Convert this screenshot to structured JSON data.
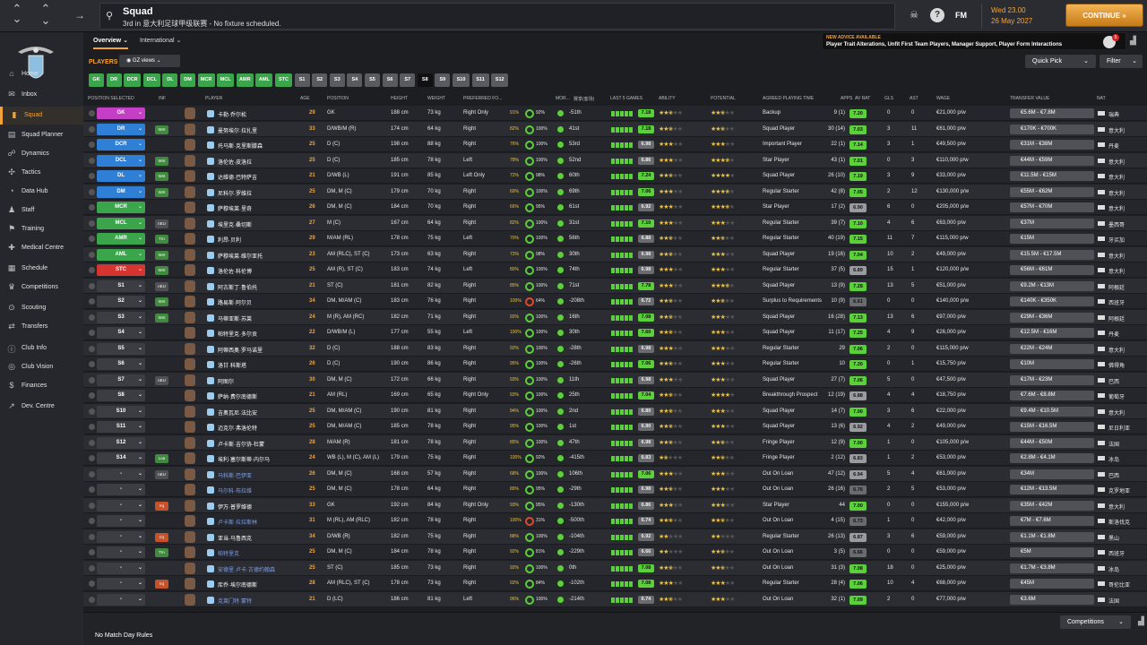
{
  "topbar": {
    "title": "Squad",
    "subtitle": "3rd in 意大利足球甲级联赛 - No fixture scheduled.",
    "fm": "FM",
    "day_time": "Wed 23.00",
    "date": "26 May 2027",
    "continue_label": "CONTINUE",
    "nav_back": "←",
    "nav_fwd": "→",
    "nav_up": "⌃",
    "nav_down": "⌄"
  },
  "sidebar": {
    "items": [
      {
        "label": "Home",
        "icon": "home-icon"
      },
      {
        "label": "Inbox",
        "icon": "inbox-icon"
      },
      {
        "label": "Squad",
        "icon": "shirt-icon"
      },
      {
        "label": "Squad Planner",
        "icon": "planner-icon"
      },
      {
        "label": "Dynamics",
        "icon": "dynamics-icon"
      },
      {
        "label": "Tactics",
        "icon": "tactics-icon"
      },
      {
        "label": "Data Hub",
        "icon": "datahub-icon"
      },
      {
        "label": "Staff",
        "icon": "staff-icon"
      },
      {
        "label": "Training",
        "icon": "training-icon"
      },
      {
        "label": "Medical Centre",
        "icon": "medical-icon"
      },
      {
        "label": "Schedule",
        "icon": "schedule-icon"
      },
      {
        "label": "Competitions",
        "icon": "trophy-icon"
      },
      {
        "label": "Scouting",
        "icon": "scouting-icon"
      },
      {
        "label": "Transfers",
        "icon": "transfers-icon"
      },
      {
        "label": "Club Info",
        "icon": "info-icon"
      },
      {
        "label": "Club Vision",
        "icon": "vision-icon"
      },
      {
        "label": "Finances",
        "icon": "finances-icon"
      },
      {
        "label": "Dev. Centre",
        "icon": "devcentre-icon"
      }
    ]
  },
  "tabs": [
    {
      "label": "Overview"
    },
    {
      "label": "International"
    }
  ],
  "advice": {
    "title": "NEW ADVICE AVAILABLE",
    "text": "Player Trait Alterations, Unfit First Team Players, Manager Support, Player Form Interactions",
    "badge": "5"
  },
  "toolbar": {
    "players_label": "PLAYERS",
    "views_label": "GZ views",
    "quick_pick": "Quick Pick",
    "filter": "Filter"
  },
  "positions": [
    "GK",
    "DR",
    "DCR",
    "DCL",
    "DL",
    "DM",
    "MCR",
    "MCL",
    "AMR",
    "AML",
    "STC",
    "S1",
    "S2",
    "S3",
    "S4",
    "S5",
    "S6",
    "S7",
    "S8",
    "S9",
    "S10",
    "S11",
    "S12"
  ],
  "columns": [
    "POSITION SELECTED",
    "INF",
    "PLAYER",
    "AGE",
    "POSITION",
    "HEIGHT",
    "WEIGHT",
    "PREFERRED FO...",
    "MOR...",
    "赛季(客场)",
    "LAST 5 GAMES",
    "ABILITY",
    "POTENTIAL",
    "AGREED PLAYING TIME",
    "APPS",
    "AV RAT",
    "GLS",
    "AST",
    "WAGE",
    "TRANSFER VALUE",
    "NAT"
  ],
  "players": [
    {
      "sel": "GK",
      "inf": "",
      "name": "卡勒·乔尔松",
      "age": "29",
      "pos": "GK",
      "height": "188 cm",
      "weight": "73 kg",
      "foot": "Right Only",
      "cond": "91%",
      "sharp": "92%",
      "ratio": "-51th",
      "last5": "7.18",
      "time": "Backup",
      "apps": "9 (1)",
      "avrat": "7.20",
      "gls": "0",
      "ast": "0",
      "wage": "€21,000 p/w",
      "value": "€5.6M - €7.8M",
      "nat": "瑞典"
    },
    {
      "sel": "DR",
      "inf": "Wnt",
      "name": "曼努埃尔·拉扎里",
      "age": "33",
      "pos": "D/WB/M (R)",
      "height": "174 cm",
      "weight": "64 kg",
      "foot": "Right",
      "cond": "82%",
      "sharp": "100%",
      "ratio": "41st",
      "last5": "7.18",
      "time": "Squad Player",
      "apps": "30 (14)",
      "avrat": "7.03",
      "gls": "3",
      "ast": "11",
      "wage": "€61,000 p/w",
      "value": "€170K - €700K",
      "nat": "意大利"
    },
    {
      "sel": "DCR",
      "inf": "",
      "name": "托马斯·克里斯滕森",
      "age": "25",
      "pos": "D (C)",
      "height": "198 cm",
      "weight": "88 kg",
      "foot": "Right",
      "cond": "76%",
      "sharp": "100%",
      "ratio": "53rd",
      "last5": "6.98",
      "time": "Important Player",
      "apps": "22 (1)",
      "avrat": "7.14",
      "gls": "3",
      "ast": "1",
      "wage": "€49,500 p/w",
      "value": "€31M - €38M",
      "nat": "丹麦"
    },
    {
      "sel": "DCL",
      "inf": "Wnt",
      "name": "洛伦佐·皮洛拉",
      "age": "25",
      "pos": "D (C)",
      "height": "185 cm",
      "weight": "78 kg",
      "foot": "Left",
      "cond": "78%",
      "sharp": "100%",
      "ratio": "52nd",
      "last5": "6.86",
      "time": "Star Player",
      "apps": "43 (1)",
      "avrat": "7.01",
      "gls": "0",
      "ast": "3",
      "wage": "€110,000 p/w",
      "value": "€44M - €59M",
      "nat": "意大利"
    },
    {
      "sel": "DL",
      "inf": "Wnt",
      "name": "达维德·巴特萨吉",
      "age": "21",
      "pos": "D/WB (L)",
      "height": "191 cm",
      "weight": "85 kg",
      "foot": "Left Only",
      "cond": "72%",
      "sharp": "98%",
      "ratio": "60th",
      "last5": "7.24",
      "time": "Squad Player",
      "apps": "26 (10)",
      "avrat": "7.19",
      "gls": "3",
      "ast": "9",
      "wage": "€33,000 p/w",
      "value": "€11.5M - €15M",
      "nat": "意大利"
    },
    {
      "sel": "DM",
      "inf": "Wnt",
      "name": "尼科尔·罗维拉",
      "age": "25",
      "pos": "DM, M (C)",
      "height": "179 cm",
      "weight": "70 kg",
      "foot": "Right",
      "cond": "69%",
      "sharp": "100%",
      "ratio": "69th",
      "last5": "7.06",
      "time": "Regular Starter",
      "apps": "42 (8)",
      "avrat": "7.05",
      "gls": "2",
      "ast": "12",
      "wage": "€130,000 p/w",
      "value": "€55M - €62M",
      "nat": "意大利"
    },
    {
      "sel": "MCR",
      "inf": "",
      "name": "萨穆埃莱·里奇",
      "age": "26",
      "pos": "DM, M (C)",
      "height": "184 cm",
      "weight": "70 kg",
      "foot": "Right",
      "cond": "66%",
      "sharp": "95%",
      "ratio": "61st",
      "last5": "6.92",
      "time": "Star Player",
      "apps": "17 (2)",
      "avrat": "6.90",
      "gls": "6",
      "ast": "0",
      "wage": "€205,000 p/w",
      "value": "€57M - €70M",
      "nat": "意大利"
    },
    {
      "sel": "MCL",
      "inf": "nEU",
      "name": "埃里克·桑切斯",
      "age": "27",
      "pos": "M (C)",
      "height": "167 cm",
      "weight": "64 kg",
      "foot": "Right",
      "cond": "82%",
      "sharp": "100%",
      "ratio": "31st",
      "last5": "7.10",
      "time": "Regular Starter",
      "apps": "39 (7)",
      "avrat": "7.10",
      "gls": "4",
      "ast": "6",
      "wage": "€63,000 p/w",
      "value": "€37M",
      "nat": "墨西哥"
    },
    {
      "sel": "AMR",
      "inf": "Tm",
      "name": "利昂·贝利",
      "age": "29",
      "pos": "M/AM (RL)",
      "height": "178 cm",
      "weight": "75 kg",
      "foot": "Left",
      "cond": "70%",
      "sharp": "100%",
      "ratio": "56th",
      "last5": "6.88",
      "time": "Regular Starter",
      "apps": "40 (19)",
      "avrat": "7.15",
      "gls": "11",
      "ast": "7",
      "wage": "€115,000 p/w",
      "value": "€15M",
      "nat": "牙买加"
    },
    {
      "sel": "AML",
      "inf": "Wnt",
      "name": "萨穆埃莱·维尔亚托",
      "age": "23",
      "pos": "AM (RLC), ST (C)",
      "height": "173 cm",
      "weight": "63 kg",
      "foot": "Right",
      "cond": "72%",
      "sharp": "98%",
      "ratio": "30th",
      "last5": "6.98",
      "time": "Squad Player",
      "apps": "19 (16)",
      "avrat": "7.04",
      "gls": "10",
      "ast": "2",
      "wage": "€49,000 p/w",
      "value": "€15.5M - €17.5M",
      "nat": "意大利"
    },
    {
      "sel": "STC",
      "inf": "Wnt",
      "name": "洛伦佐·科伦博",
      "age": "25",
      "pos": "AM (R), ST (C)",
      "height": "183 cm",
      "weight": "74 kg",
      "foot": "Left",
      "cond": "80%",
      "sharp": "100%",
      "ratio": "74th",
      "last5": "6.98",
      "time": "Regular Starter",
      "apps": "37 (5)",
      "avrat": "6.89",
      "gls": "15",
      "ast": "1",
      "wage": "€120,000 p/w",
      "value": "€56M - €61M",
      "nat": "意大利"
    },
    {
      "sel": "S1",
      "inf": "nEU",
      "name": "阿古斯丁·鲁伯托",
      "age": "21",
      "pos": "ST (C)",
      "height": "181 cm",
      "weight": "82 kg",
      "foot": "Right",
      "cond": "85%",
      "sharp": "100%",
      "ratio": "71st",
      "last5": "7.78",
      "time": "Squad Player",
      "apps": "13 (9)",
      "avrat": "7.28",
      "gls": "13",
      "ast": "5",
      "wage": "€51,000 p/w",
      "value": "€9.2M - €13M",
      "nat": "阿根廷"
    },
    {
      "sel": "S2",
      "inf": "Wnt",
      "name": "路易斯·阿尔贝",
      "age": "34",
      "pos": "DM, M/AM (C)",
      "height": "183 cm",
      "weight": "76 kg",
      "foot": "Right",
      "cond": "100%",
      "sharp": "64%",
      "ratio": "-208th",
      "last5": "6.72",
      "time": "Surplus to Requirements",
      "apps": "10 (9)",
      "avrat": "6.61",
      "gls": "0",
      "ast": "0",
      "wage": "€140,000 p/w",
      "value": "€140K - €350K",
      "nat": "西班牙"
    },
    {
      "sel": "S3",
      "inf": "Wnt",
      "name": "马蒂亚斯·苏莱",
      "age": "24",
      "pos": "M (R), AM (RC)",
      "height": "182 cm",
      "weight": "71 kg",
      "foot": "Right",
      "cond": "92%",
      "sharp": "100%",
      "ratio": "16th",
      "last5": "7.08",
      "time": "Squad Player",
      "apps": "16 (28)",
      "avrat": "7.13",
      "gls": "13",
      "ast": "6",
      "wage": "€97,000 p/w",
      "value": "€29M - €36M",
      "nat": "阿根廷"
    },
    {
      "sel": "S4",
      "inf": "",
      "name": "帕特里克·多尔贡",
      "age": "22",
      "pos": "D/WB/M (L)",
      "height": "177 cm",
      "weight": "55 kg",
      "foot": "Left",
      "cond": "100%",
      "sharp": "100%",
      "ratio": "30th",
      "last5": "7.60",
      "time": "Squad Player",
      "apps": "11 (17)",
      "avrat": "7.25",
      "gls": "4",
      "ast": "9",
      "wage": "€26,000 p/w",
      "value": "€12.5M - €16M",
      "nat": "丹麦"
    },
    {
      "sel": "S5",
      "inf": "",
      "name": "阿蒂西奥·罗马诺里",
      "age": "32",
      "pos": "D (C)",
      "height": "188 cm",
      "weight": "83 kg",
      "foot": "Right",
      "cond": "92%",
      "sharp": "100%",
      "ratio": "-28th",
      "last5": "6.98",
      "time": "Regular Starter",
      "apps": "29",
      "avrat": "7.06",
      "gls": "2",
      "ast": "0",
      "wage": "€115,000 p/w",
      "value": "€22M - €24M",
      "nat": "意大利"
    },
    {
      "sel": "S6",
      "inf": "",
      "name": "洛甘·科斯塔",
      "age": "26",
      "pos": "D (C)",
      "height": "190 cm",
      "weight": "86 kg",
      "foot": "Right",
      "cond": "95%",
      "sharp": "100%",
      "ratio": "-26th",
      "last5": "7.06",
      "time": "Regular Starter",
      "apps": "10",
      "avrat": "7.20",
      "gls": "0",
      "ast": "1",
      "wage": "€15,750 p/w",
      "value": "€10M",
      "nat": "佛得角"
    },
    {
      "sel": "S7",
      "inf": "nEU",
      "name": "阿图尔",
      "age": "30",
      "pos": "DM, M (C)",
      "height": "172 cm",
      "weight": "66 kg",
      "foot": "Right",
      "cond": "93%",
      "sharp": "100%",
      "ratio": "11th",
      "last5": "6.98",
      "time": "Squad Player",
      "apps": "27 (7)",
      "avrat": "7.06",
      "gls": "5",
      "ast": "0",
      "wage": "€47,500 p/w",
      "value": "€17M - €23M",
      "nat": "巴西"
    },
    {
      "sel": "S8",
      "inf": "",
      "name": "萨纳·费尔南德斯",
      "age": "21",
      "pos": "AM (RL)",
      "height": "169 cm",
      "weight": "65 kg",
      "foot": "Right Only",
      "cond": "93%",
      "sharp": "100%",
      "ratio": "25th",
      "last5": "7.04",
      "time": "Breakthrough Prospect",
      "apps": "12 (19)",
      "avrat": "6.88",
      "gls": "4",
      "ast": "4",
      "wage": "€18,750 p/w",
      "value": "€7.6M - €8.8M",
      "nat": "葡萄牙"
    },
    {
      "sel": "S10",
      "inf": "",
      "name": "吉奥瓦尼·法比安",
      "age": "25",
      "pos": "DM, M/AM (C)",
      "height": "190 cm",
      "weight": "81 kg",
      "foot": "Right",
      "cond": "94%",
      "sharp": "100%",
      "ratio": "2nd",
      "last5": "6.80",
      "time": "Squad Player",
      "apps": "14 (7)",
      "avrat": "7.00",
      "gls": "3",
      "ast": "6",
      "wage": "€22,000 p/w",
      "value": "€9.4M - €10.5M",
      "nat": "意大利"
    },
    {
      "sel": "S11",
      "inf": "",
      "name": "迈克尔·弗洛伦特",
      "age": "25",
      "pos": "DM, M/AM (C)",
      "height": "185 cm",
      "weight": "78 kg",
      "foot": "Right",
      "cond": "95%",
      "sharp": "100%",
      "ratio": "1st",
      "last5": "6.90",
      "time": "Squad Player",
      "apps": "13 (6)",
      "avrat": "6.92",
      "gls": "4",
      "ast": "2",
      "wage": "€49,000 p/w",
      "value": "€15M - €16.5M",
      "nat": "尼日利亚"
    },
    {
      "sel": "S12",
      "inf": "",
      "name": "卢卡斯·吉尔协·杜蒙",
      "age": "28",
      "pos": "M/AM (R)",
      "height": "181 cm",
      "weight": "78 kg",
      "foot": "Right",
      "cond": "85%",
      "sharp": "100%",
      "ratio": "47th",
      "last5": "6.98",
      "time": "Fringe Player",
      "apps": "12 (9)",
      "avrat": "7.00",
      "gls": "1",
      "ast": "0",
      "wage": "€105,000 p/w",
      "value": "€44M - €50M",
      "nat": "法国"
    },
    {
      "sel": "S14",
      "inf": "Loa",
      "name": "埃利·塞尔斯蒂·内尔马",
      "age": "24",
      "pos": "WB (L), M (C), AM (L)",
      "height": "179 cm",
      "weight": "75 kg",
      "foot": "Right",
      "cond": "100%",
      "sharp": "92%",
      "ratio": "-415th",
      "last5": "6.83",
      "time": "Fringe Player",
      "apps": "2 (12)",
      "avrat": "6.83",
      "gls": "1",
      "ast": "2",
      "wage": "€53,000 p/w",
      "value": "€2.8M - €4.1M",
      "nat": "冰岛"
    },
    {
      "sel": "-",
      "inf": "nEU",
      "name": "马科斯·巴伊亚",
      "age": "26",
      "pos": "DM, M (C)",
      "height": "168 cm",
      "weight": "57 kg",
      "foot": "Right",
      "cond": "68%",
      "sharp": "100%",
      "ratio": "106th",
      "last5": "7.06",
      "time": "Out On Loan",
      "apps": "47 (12)",
      "avrat": "6.94",
      "gls": "5",
      "ast": "4",
      "wage": "€61,000 p/w",
      "value": "€34M",
      "nat": "巴西"
    },
    {
      "sel": "-",
      "inf": "",
      "name": "马尔科·布拉维",
      "age": "25",
      "pos": "DM, M (C)",
      "height": "178 cm",
      "weight": "64 kg",
      "foot": "Right",
      "cond": "89%",
      "sharp": "95%",
      "ratio": "-29th",
      "last5": "6.98",
      "time": "Out On Loan",
      "apps": "26 (16)",
      "avrat": "6.76",
      "gls": "2",
      "ast": "5",
      "wage": "€53,000 p/w",
      "value": "€12M - €13.5M",
      "nat": "克罗地亚"
    },
    {
      "sel": "-",
      "inf": "Inj",
      "name": "伊万·普罗维德",
      "age": "33",
      "pos": "GK",
      "height": "192 cm",
      "weight": "84 kg",
      "foot": "Right Only",
      "cond": "93%",
      "sharp": "95%",
      "ratio": "-130th",
      "last5": "6.86",
      "time": "Star Player",
      "apps": "44",
      "avrat": "7.00",
      "gls": "0",
      "ast": "0",
      "wage": "€155,000 p/w",
      "value": "€35M - €42M",
      "nat": "意大利"
    },
    {
      "sel": "-",
      "inf": "",
      "name": "卢卡斯·拉拉斯林",
      "age": "31",
      "pos": "M (RL), AM (RLC)",
      "height": "182 cm",
      "weight": "78 kg",
      "foot": "Right",
      "cond": "100%",
      "sharp": "31%",
      "ratio": "-500th",
      "last5": "6.74",
      "time": "Out On Loan",
      "apps": "4 (15)",
      "avrat": "6.73",
      "gls": "1",
      "ast": "0",
      "wage": "€42,000 p/w",
      "value": "€7M - €7.6M",
      "nat": "斯洛伐克"
    },
    {
      "sel": "-",
      "inf": "Inj",
      "name": "亚当·马鲁西克",
      "age": "34",
      "pos": "D/WB (R)",
      "height": "182 cm",
      "weight": "75 kg",
      "foot": "Right",
      "cond": "88%",
      "sharp": "100%",
      "ratio": "-104th",
      "last5": "6.92",
      "time": "Regular Starter",
      "apps": "26 (13)",
      "avrat": "6.87",
      "gls": "3",
      "ast": "6",
      "wage": "€59,000 p/w",
      "value": "€1.1M - €1.8M",
      "nat": "黑山"
    },
    {
      "sel": "-",
      "inf": "Tm",
      "name": "帕特里克",
      "age": "25",
      "pos": "DM, M (C)",
      "height": "184 cm",
      "weight": "78 kg",
      "foot": "Right",
      "cond": "92%",
      "sharp": "81%",
      "ratio": "-229th",
      "last5": "6.66",
      "time": "Out On Loan",
      "apps": "3 (5)",
      "avrat": "6.66",
      "gls": "0",
      "ast": "0",
      "wage": "€59,000 p/w",
      "value": "€5M",
      "nat": "西班牙"
    },
    {
      "sel": "-",
      "inf": "",
      "name": "安德里·卢卡·古德约翰森",
      "age": "25",
      "pos": "ST (C)",
      "height": "185 cm",
      "weight": "73 kg",
      "foot": "Right",
      "cond": "92%",
      "sharp": "100%",
      "ratio": "0th",
      "last5": "7.08",
      "time": "Out On Loan",
      "apps": "31 (3)",
      "avrat": "7.08",
      "gls": "18",
      "ast": "0",
      "wage": "€25,000 p/w",
      "value": "€1.7M - €3.8M",
      "nat": "冰岛"
    },
    {
      "sel": "-",
      "inf": "Inj",
      "name": "库乔·埃尔南德斯",
      "age": "28",
      "pos": "AM (RLC), ST (C)",
      "height": "178 cm",
      "weight": "73 kg",
      "foot": "Right",
      "cond": "92%",
      "sharp": "84%",
      "ratio": "-102th",
      "last5": "7.08",
      "time": "Regular Starter",
      "apps": "28 (4)",
      "avrat": "7.06",
      "gls": "10",
      "ast": "4",
      "wage": "€68,000 p/w",
      "value": "€45M",
      "nat": "哥伦比亚"
    },
    {
      "sel": "-",
      "inf": "",
      "name": "克莱门特·蒙特",
      "age": "21",
      "pos": "D (LC)",
      "height": "186 cm",
      "weight": "81 kg",
      "foot": "Left",
      "cond": "96%",
      "sharp": "100%",
      "ratio": "-214th",
      "last5": "6.74",
      "time": "Out On Loan",
      "apps": "32 (1)",
      "avrat": "7.09",
      "gls": "2",
      "ast": "0",
      "wage": "€77,000 p/w",
      "value": "€3.6M",
      "nat": "法国"
    }
  ],
  "bottom": {
    "no_match": "No Match Day Rules",
    "competitions": "Competitions"
  },
  "colors": {
    "accent": "#f2a33a",
    "gk": "#c43fc6",
    "def": "#2f7fd6",
    "mid": "#3aa54a",
    "att": "#d6342f",
    "good": "#5bd03a"
  }
}
